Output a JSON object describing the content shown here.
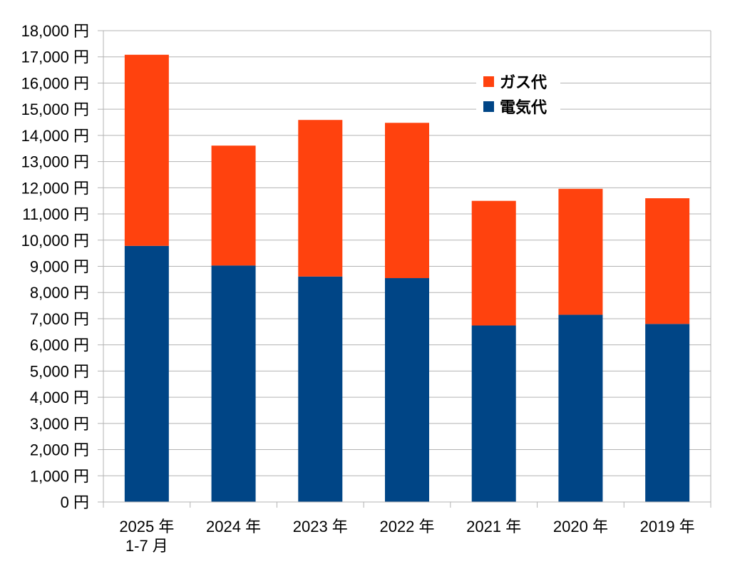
{
  "chart_data": {
    "type": "bar",
    "stacked": true,
    "title": "",
    "xlabel": "",
    "ylabel": "",
    "ylim": [
      0,
      18000
    ],
    "y_tick_step": 1000,
    "y_tick_suffix": " 円",
    "grid": true,
    "legend_position": "top-right",
    "categories": [
      [
        "2025 年",
        "1-7 月"
      ],
      [
        "2024 年"
      ],
      [
        "2023 年"
      ],
      [
        "2022 年"
      ],
      [
        "2021 年"
      ],
      [
        "2020 年"
      ],
      [
        "2019 年"
      ]
    ],
    "series": [
      {
        "name": "電気代",
        "color": "#004586",
        "values": [
          9780,
          9030,
          8610,
          8550,
          6740,
          7150,
          6800
        ]
      },
      {
        "name": "ガス代",
        "color": "#ff420e",
        "values": [
          7300,
          4580,
          5980,
          5930,
          4760,
          4810,
          4800
        ]
      }
    ],
    "legend_order": [
      "ガス代",
      "電気代"
    ]
  }
}
